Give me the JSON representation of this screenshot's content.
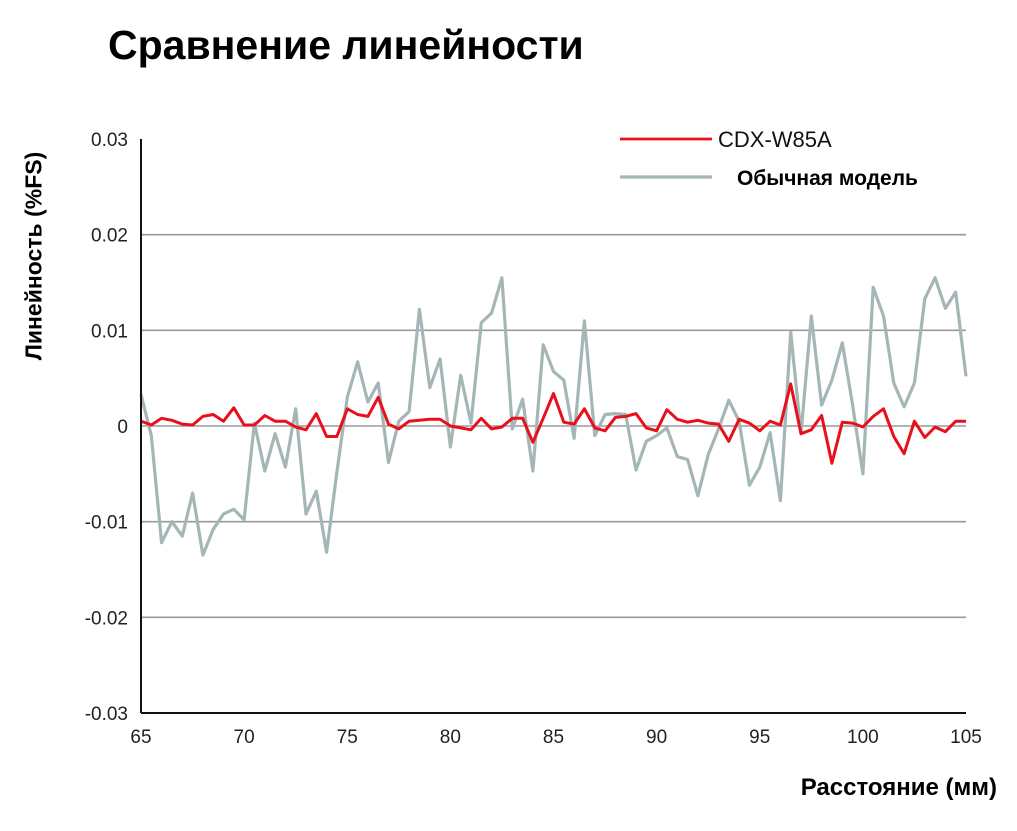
{
  "chart_data": {
    "type": "line",
    "title": "Сравнение линейности",
    "xlabel": "Расстояние (мм)",
    "ylabel": "Линейность (%FS)",
    "xlim": [
      65,
      105
    ],
    "ylim": [
      -0.03,
      0.03
    ],
    "x_ticks": [
      "65",
      "70",
      "75",
      "80",
      "85",
      "90",
      "95",
      "100",
      "105"
    ],
    "y_ticks": [
      "0.03",
      "0.02",
      "0.01",
      "0",
      "-0.01",
      "-0.02",
      "-0.03"
    ],
    "grid": true,
    "legend_position": "top-right",
    "series": [
      {
        "name": "CDX-W85A",
        "color": "#e8101c",
        "x": [
          65,
          65.5,
          66,
          66.5,
          67,
          67.5,
          68,
          68.5,
          69,
          69.5,
          70,
          70.5,
          71,
          71.5,
          72,
          72.5,
          73,
          73.5,
          74,
          74.5,
          75,
          75.5,
          76,
          76.5,
          77,
          77.5,
          78,
          78.5,
          79,
          79.5,
          80,
          80.5,
          81,
          81.5,
          82,
          82.5,
          83,
          83.5,
          84,
          84.5,
          85,
          85.5,
          86,
          86.5,
          87,
          87.5,
          88,
          88.5,
          89,
          89.5,
          90,
          90.5,
          91,
          91.5,
          92,
          92.5,
          93,
          93.5,
          94,
          94.5,
          95,
          95.5,
          96,
          96.5,
          97,
          97.5,
          98,
          98.5,
          99,
          99.5,
          100,
          100.5,
          101,
          101.5,
          102,
          102.5,
          103,
          103.5,
          104,
          104.5,
          105
        ],
        "y": [
          0.0005,
          0.0001,
          0.0008,
          0.0006,
          0.0002,
          0.0001,
          0.001,
          0.0012,
          0.0005,
          0.0019,
          0.0001,
          0.0001,
          0.0011,
          0.0005,
          0.0005,
          -0.0001,
          -0.0004,
          0.0013,
          -0.0011,
          -0.0011,
          0.0018,
          0.0012,
          0.001,
          0.003,
          0.0002,
          -0.0003,
          0.0005,
          0.0006,
          0.0007,
          0.0007,
          0.0,
          -0.0002,
          -0.0004,
          0.0008,
          -0.0003,
          -0.0001,
          0.0008,
          0.0008,
          -0.0017,
          0.0008,
          0.0034,
          0.0004,
          0.0002,
          0.0018,
          -0.0002,
          -0.0005,
          0.0009,
          0.001,
          0.0013,
          -0.0002,
          -0.0005,
          0.0017,
          0.0007,
          0.0004,
          0.0006,
          0.0003,
          0.0002,
          -0.0016,
          0.0007,
          0.0003,
          -0.0005,
          0.0005,
          0.0001,
          0.0044,
          -0.0008,
          -0.0004,
          0.0011,
          -0.0039,
          0.0004,
          0.0003,
          -0.0001,
          0.001,
          0.0018,
          -0.0011,
          -0.0029,
          0.0005,
          -0.0012,
          -0.0001,
          -0.0006,
          0.0005,
          0.0005
        ]
      },
      {
        "name": "Обычная модель",
        "color": "#a5b6b6",
        "x": [
          65,
          65.5,
          66,
          66.5,
          67,
          67.5,
          68,
          68.5,
          69,
          69.5,
          70,
          70.5,
          71,
          71.5,
          72,
          72.5,
          73,
          73.5,
          74,
          74.5,
          75,
          75.5,
          76,
          76.5,
          77,
          77.5,
          78,
          78.5,
          79,
          79.5,
          80,
          80.5,
          81,
          81.5,
          82,
          82.5,
          83,
          83.5,
          84,
          84.5,
          85,
          85.5,
          86,
          86.5,
          87,
          87.5,
          88,
          88.5,
          89,
          89.5,
          90,
          90.5,
          91,
          91.5,
          92,
          92.5,
          93,
          93.5,
          94,
          94.5,
          95,
          95.5,
          96,
          96.5,
          97,
          97.5,
          98,
          98.5,
          99,
          99.5,
          100,
          100.5,
          101,
          101.5,
          102,
          102.5,
          103,
          103.5,
          104,
          104.5,
          105
        ],
        "y": [
          0.0033,
          -0.001,
          -0.0122,
          -0.01,
          -0.0115,
          -0.007,
          -0.0135,
          -0.0108,
          -0.0092,
          -0.0087,
          -0.0098,
          0.0003,
          -0.0047,
          -0.0008,
          -0.0043,
          0.0018,
          -0.0092,
          -0.0068,
          -0.0132,
          -0.0048,
          0.003,
          0.0067,
          0.0025,
          0.0045,
          -0.0038,
          0.0005,
          0.0015,
          0.0122,
          0.004,
          0.007,
          -0.0022,
          0.0053,
          0.0003,
          0.0108,
          0.0118,
          0.0155,
          -0.0003,
          0.0028,
          -0.0047,
          0.0085,
          0.0057,
          0.0048,
          -0.0013,
          0.011,
          -0.001,
          0.0012,
          0.0013,
          0.0012,
          -0.0046,
          -0.0016,
          -0.001,
          -0.0002,
          -0.0032,
          -0.0035,
          -0.0073,
          -0.003,
          -0.0003,
          0.0027,
          0.0005,
          -0.0062,
          -0.0043,
          -0.0007,
          -0.0078,
          0.0098,
          -0.0008,
          0.0115,
          0.0022,
          0.0048,
          0.0087,
          0.0022,
          -0.005,
          0.0145,
          0.0115,
          0.0045,
          0.002,
          0.0045,
          0.0133,
          0.0155,
          0.0123,
          0.014,
          0.0052
        ]
      }
    ]
  }
}
